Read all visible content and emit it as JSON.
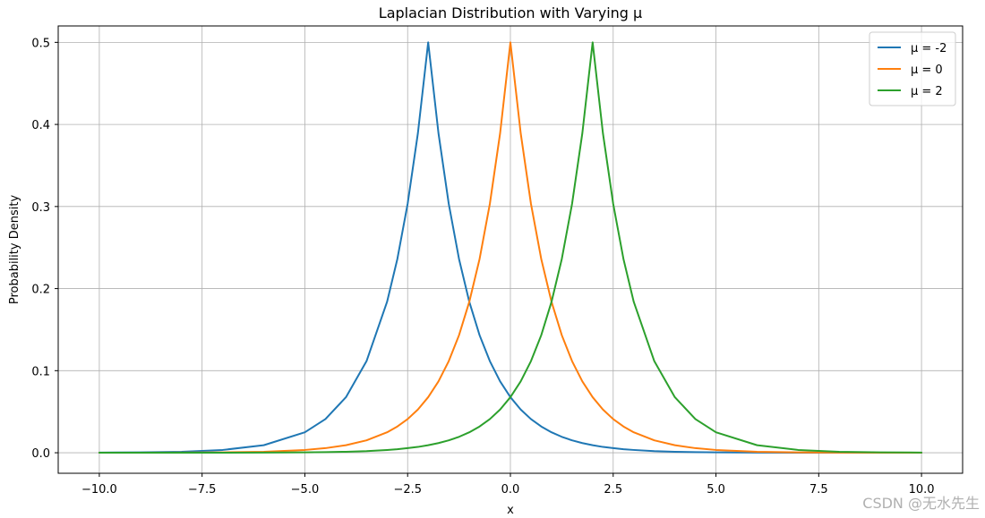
{
  "chart_data": {
    "type": "line",
    "title": "Laplacian Distribution with Varying μ",
    "xlabel": "x",
    "ylabel": "Probability Density",
    "xlim": [
      -11.0,
      11.0
    ],
    "ylim": [
      -0.025,
      0.52
    ],
    "x_ticks": [
      -10.0,
      -7.5,
      -5.0,
      -2.5,
      0.0,
      2.5,
      5.0,
      7.5,
      10.0
    ],
    "x_tick_labels": [
      "−10.0",
      "−7.5",
      "−5.0",
      "−2.5",
      "0.0",
      "2.5",
      "5.0",
      "7.5",
      "10.0"
    ],
    "y_ticks": [
      0.0,
      0.1,
      0.2,
      0.3,
      0.4,
      0.5
    ],
    "y_tick_labels": [
      "0.0",
      "0.1",
      "0.2",
      "0.3",
      "0.4",
      "0.5"
    ],
    "grid": true,
    "legend_position": "top-right",
    "x": [
      -10.0,
      -9.0,
      -8.0,
      -7.0,
      -6.0,
      -5.0,
      -4.5,
      -4.0,
      -3.5,
      -3.0,
      -2.75,
      -2.5,
      -2.25,
      -2.0,
      -1.75,
      -1.5,
      -1.25,
      -1.0,
      -0.75,
      -0.5,
      -0.25,
      0.0,
      0.25,
      0.5,
      0.75,
      1.0,
      1.25,
      1.5,
      1.75,
      2.0,
      2.25,
      2.5,
      2.75,
      3.0,
      3.5,
      4.0,
      4.5,
      5.0,
      6.0,
      7.0,
      8.0,
      9.0,
      10.0
    ],
    "series": [
      {
        "name": "μ = -2",
        "color": "#1f77b4",
        "values": [
          0.0002,
          0.0005,
          0.0012,
          0.0034,
          0.0092,
          0.0249,
          0.041,
          0.0677,
          0.1116,
          0.1839,
          0.2361,
          0.3033,
          0.3894,
          0.5,
          0.3894,
          0.3033,
          0.2361,
          0.1839,
          0.1432,
          0.1116,
          0.0869,
          0.0677,
          0.0527,
          0.041,
          0.032,
          0.0249,
          0.0194,
          0.0151,
          0.0118,
          0.0092,
          0.0071,
          0.0056,
          0.0043,
          0.0034,
          0.002,
          0.0012,
          0.0008,
          0.0005,
          0.0002,
          0.0001,
          0.0,
          0.0,
          0.0
        ]
      },
      {
        "name": "μ = 0",
        "color": "#ff7f0e",
        "values": [
          0.0,
          0.0001,
          0.0002,
          0.0005,
          0.0012,
          0.0034,
          0.0056,
          0.0092,
          0.0151,
          0.0249,
          0.032,
          0.041,
          0.0527,
          0.0677,
          0.0869,
          0.1116,
          0.1432,
          0.1839,
          0.2361,
          0.3033,
          0.3894,
          0.5,
          0.3894,
          0.3033,
          0.2361,
          0.1839,
          0.1432,
          0.1116,
          0.0869,
          0.0677,
          0.0527,
          0.041,
          0.032,
          0.0249,
          0.0151,
          0.0092,
          0.0056,
          0.0034,
          0.0012,
          0.0005,
          0.0002,
          0.0001,
          0.0
        ]
      },
      {
        "name": "μ = 2",
        "color": "#2ca02c",
        "values": [
          0.0,
          0.0,
          0.0,
          0.0001,
          0.0002,
          0.0005,
          0.0008,
          0.0012,
          0.002,
          0.0034,
          0.0043,
          0.0056,
          0.0071,
          0.0092,
          0.0118,
          0.0151,
          0.0194,
          0.0249,
          0.032,
          0.041,
          0.0527,
          0.0677,
          0.0869,
          0.1116,
          0.1432,
          0.1839,
          0.2361,
          0.3033,
          0.3894,
          0.5,
          0.3894,
          0.3033,
          0.2361,
          0.1839,
          0.1116,
          0.0677,
          0.041,
          0.0249,
          0.0092,
          0.0034,
          0.0012,
          0.0005,
          0.0002
        ]
      }
    ]
  },
  "watermark": "CSDN @无水先生"
}
